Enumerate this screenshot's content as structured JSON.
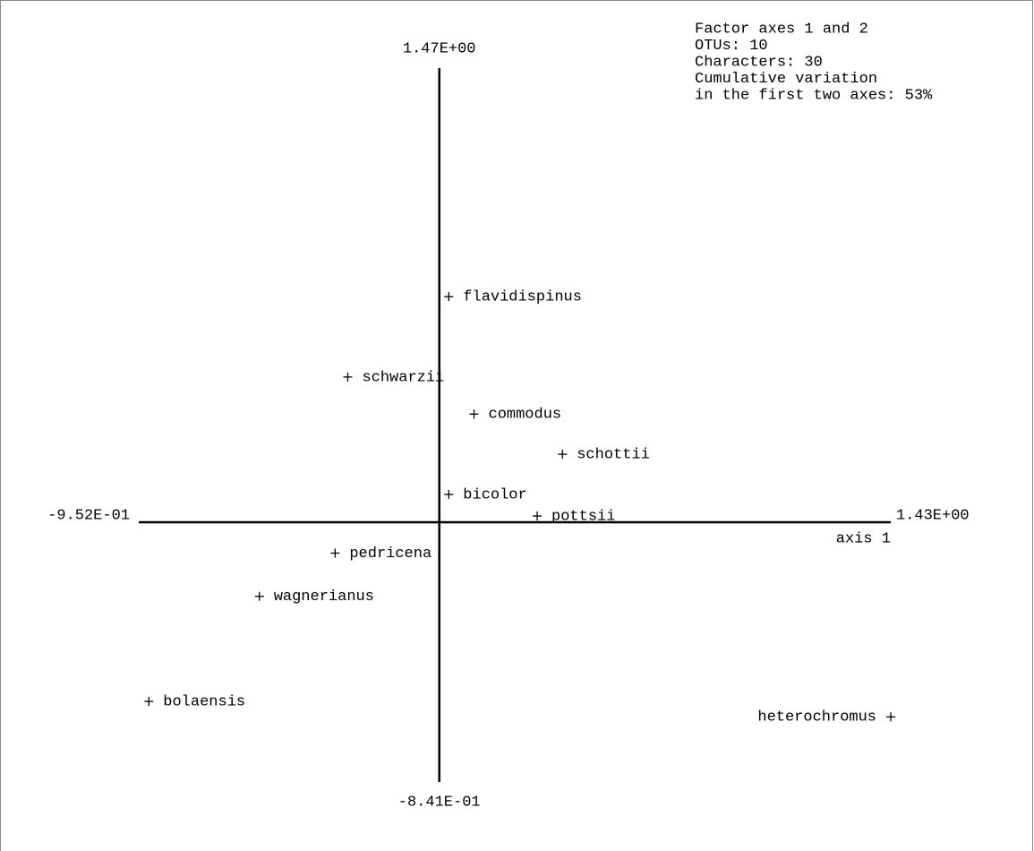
{
  "chart_data": {
    "type": "scatter",
    "annotations": [
      "Factor axes 1 and 2",
      "OTUs: 10",
      "Characters: 30",
      "Cumulative variation",
      "in the first two axes: 53%"
    ],
    "x_label": "axis 1",
    "labels": [
      "flavidispinus",
      "schwarzii",
      "commodus",
      "schottii",
      "bicolor",
      "pottsii",
      "pedricena",
      "wagnerianus",
      "heterochromus",
      "bolaensis"
    ],
    "x": [
      0.03,
      -0.29,
      0.11,
      0.39,
      0.03,
      0.31,
      -0.33,
      -0.57,
      1.43,
      -0.92
    ],
    "y": [
      0.73,
      0.47,
      0.35,
      0.22,
      0.09,
      0.02,
      -0.1,
      -0.24,
      -0.63,
      -0.58
    ],
    "xlim": [
      -0.952,
      1.43
    ],
    "ylim": [
      -0.841,
      1.47
    ],
    "xticks": [
      {
        "value": -0.952,
        "label": "-9.52E-01"
      },
      {
        "value": 1.43,
        "label": "1.43E+00"
      }
    ],
    "yticks": [
      {
        "value": -0.841,
        "label": "-8.41E-01"
      },
      {
        "value": 1.47,
        "label": "1.47E+00"
      }
    ],
    "color": "#000000"
  }
}
